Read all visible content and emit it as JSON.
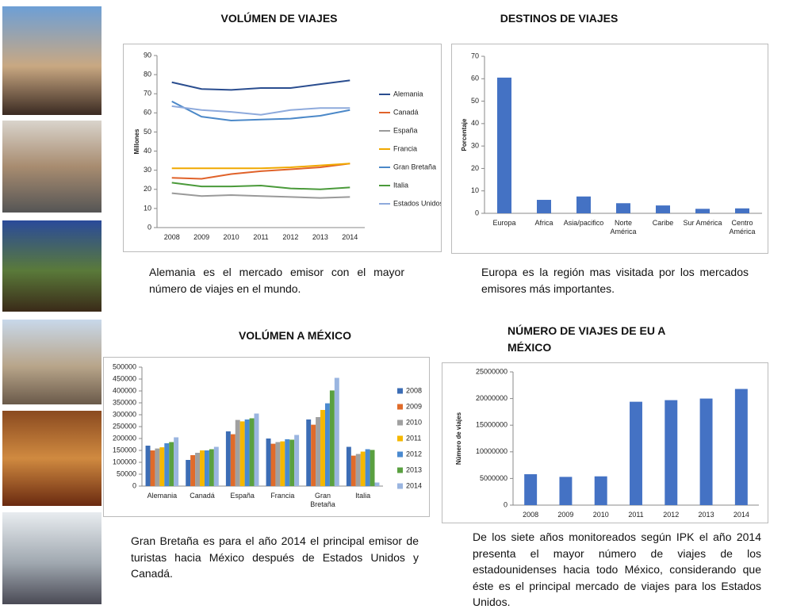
{
  "chart_data": [
    {
      "type": "line",
      "title": "VOLÚMEN DE VIAJES",
      "ylabel": "Millones",
      "categories": [
        "2008",
        "2009",
        "2010",
        "2011",
        "2012",
        "2013",
        "2014"
      ],
      "ylim": [
        0,
        90
      ],
      "yticks": [
        0,
        10,
        20,
        30,
        40,
        50,
        60,
        70,
        80,
        90
      ],
      "grid": false,
      "legend": "right",
      "series": [
        {
          "name": "Alemania",
          "color": "#2a4d8f",
          "values": [
            76,
            72.5,
            72,
            73,
            73,
            75,
            77
          ]
        },
        {
          "name": "Canadá",
          "color": "#e0622a",
          "values": [
            26,
            25.5,
            28,
            29.5,
            30.5,
            31.5,
            33.5
          ]
        },
        {
          "name": "España",
          "color": "#9a9a9a",
          "values": [
            18,
            16.5,
            17,
            16.5,
            16,
            15.5,
            16
          ]
        },
        {
          "name": "Francia",
          "color": "#f0a800",
          "values": [
            31,
            31,
            31,
            31,
            31.5,
            32.5,
            33.5
          ]
        },
        {
          "name": "Gran Bretaña",
          "color": "#4b88c8",
          "values": [
            66,
            58,
            56,
            56.5,
            57,
            58.5,
            61.5
          ]
        },
        {
          "name": "Italia",
          "color": "#4a9a3a",
          "values": [
            23.5,
            21.5,
            21.5,
            22,
            20.5,
            20,
            21
          ]
        },
        {
          "name": "Estados Unidos",
          "color": "#8eaadc",
          "values": [
            63.5,
            61.5,
            60.5,
            59,
            61.5,
            62.5,
            62.5
          ]
        }
      ],
      "caption": "Alemania es el mercado emisor con el mayor número de viajes en el mundo."
    },
    {
      "type": "bar",
      "title": "DESTINOS DE VIAJES",
      "ylabel": "Porcentaje",
      "categories": [
        "Europa",
        "Africa",
        "Asia/pacifico",
        "Norte América",
        "Caribe",
        "Sur América",
        "Centro América"
      ],
      "values": [
        60.5,
        6,
        7.5,
        4.5,
        3.5,
        2,
        2.2
      ],
      "color": "#4472c4",
      "ylim": [
        0,
        70
      ],
      "yticks": [
        0,
        10,
        20,
        30,
        40,
        50,
        60,
        70
      ],
      "grid": false,
      "caption": "Europa es la región mas visitada por los mercados emisores más importantes."
    },
    {
      "type": "bar",
      "title": "VOLÚMEN A MÉXICO",
      "categories": [
        "Alemania",
        "Canadá",
        "España",
        "Francia",
        "Gran Bretaña",
        "Italia"
      ],
      "ylim": [
        0,
        500000
      ],
      "yticks": [
        0,
        50000,
        100000,
        150000,
        200000,
        250000,
        300000,
        350000,
        400000,
        450000,
        500000
      ],
      "grid": false,
      "legend": "right",
      "series": [
        {
          "name": "2008",
          "color": "#3c6db5",
          "values": [
            170000,
            110000,
            230000,
            200000,
            280000,
            165000
          ]
        },
        {
          "name": "2009",
          "color": "#e06b2a",
          "values": [
            150000,
            130000,
            218000,
            178000,
            258000,
            128000
          ]
        },
        {
          "name": "2010",
          "color": "#a0a0a0",
          "values": [
            158000,
            140000,
            278000,
            185000,
            290000,
            135000
          ]
        },
        {
          "name": "2011",
          "color": "#f5b800",
          "values": [
            163000,
            150000,
            272000,
            188000,
            320000,
            145000
          ]
        },
        {
          "name": "2012",
          "color": "#4a8ad0",
          "values": [
            180000,
            150000,
            280000,
            197000,
            348000,
            155000
          ]
        },
        {
          "name": "2013",
          "color": "#5aa040",
          "values": [
            185000,
            155000,
            285000,
            195000,
            402000,
            152000
          ]
        },
        {
          "name": "2014",
          "color": "#9ab5e0",
          "values": [
            205000,
            165000,
            305000,
            215000,
            455000,
            15000
          ]
        }
      ],
      "caption": "Gran Bretaña es para el año 2014 el principal emisor de turistas hacia México después de Estados Unidos y Canadá."
    },
    {
      "type": "bar",
      "title": "NÚMERO DE VIAJES DE EU A MÉXICO",
      "ylabel": "Número de viajes",
      "categories": [
        "2008",
        "2009",
        "2010",
        "2011",
        "2012",
        "2013",
        "2014"
      ],
      "values": [
        5800000,
        5300000,
        5400000,
        19400000,
        19700000,
        20000000,
        21800000
      ],
      "color": "#4472c4",
      "ylim": [
        0,
        25000000
      ],
      "yticks": [
        0,
        5000000,
        10000000,
        15000000,
        20000000,
        25000000
      ],
      "grid": false,
      "caption": "De los siete años monitoreados según IPK el año 2014 presenta el mayor número de viajes de los estadounidenses hacia todo México, considerando que éste es el principal mercado de viajes para los Estados Unidos."
    }
  ]
}
